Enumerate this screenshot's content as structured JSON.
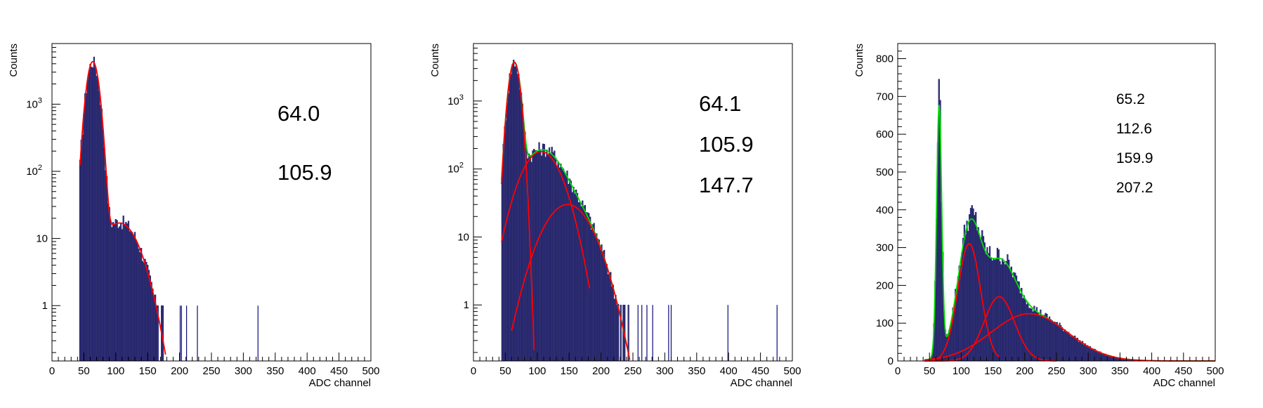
{
  "chart_data": [
    {
      "type": "histogram",
      "yscale": "log",
      "xlabel": "ADC channel",
      "ylabel": "Counts",
      "xlim": [
        0,
        500
      ],
      "ylim": [
        0.15,
        8000
      ],
      "xticks": [
        "0",
        "50",
        "100",
        "150",
        "200",
        "250",
        "300",
        "350",
        "400",
        "450",
        "500"
      ],
      "yticks": [
        {
          "value": 1,
          "label": "1"
        },
        {
          "value": 10,
          "label": "10"
        },
        {
          "value": 100,
          "label": "10",
          "exp": "2"
        },
        {
          "value": 1000,
          "label": "10",
          "exp": "3"
        }
      ],
      "peak_labels": [
        "64.0",
        "105.9"
      ],
      "fit_components": [
        {
          "color": "#ff0000",
          "peaks": [
            {
              "mu": 64.0,
              "amp": 4300,
              "sigma": 7.5
            },
            {
              "mu": 105.9,
              "amp": 17,
              "sigma": 24
            }
          ],
          "xrange": [
            44,
            178
          ]
        }
      ],
      "histogram_peaks": [
        {
          "mu": 64.0,
          "amp": 4300,
          "sigma": 7.5
        },
        {
          "mu": 105.9,
          "amp": 18,
          "sigma": 24
        }
      ],
      "hist_range": [
        43,
        176
      ],
      "isolated_bins": [
        {
          "x": 201,
          "y": 1
        },
        {
          "x": 203,
          "y": 1
        },
        {
          "x": 211,
          "y": 1
        },
        {
          "x": 228,
          "y": 1
        },
        {
          "x": 323,
          "y": 1
        }
      ]
    },
    {
      "type": "histogram",
      "yscale": "log",
      "xlabel": "ADC channel",
      "ylabel": "Counts",
      "xlim": [
        0,
        500
      ],
      "ylim": [
        0.15,
        7000
      ],
      "xticks": [
        "0",
        "50",
        "100",
        "150",
        "200",
        "250",
        "300",
        "350",
        "400",
        "450",
        "500"
      ],
      "yticks": [
        {
          "value": 1,
          "label": "1"
        },
        {
          "value": 10,
          "label": "10"
        },
        {
          "value": 100,
          "label": "10",
          "exp": "2"
        },
        {
          "value": 1000,
          "label": "10",
          "exp": "3"
        }
      ],
      "peak_labels": [
        "64.1",
        "105.9",
        "147.7"
      ],
      "fit_components": [
        {
          "color": "#00dd00",
          "peaks": [
            {
              "mu": 64.1,
              "amp": 3700,
              "sigma": 7
            },
            {
              "mu": 105.9,
              "amp": 180,
              "sigma": 25
            },
            {
              "mu": 147.7,
              "amp": 30,
              "sigma": 30
            }
          ],
          "xrange": [
            44,
            245
          ]
        },
        {
          "color": "#ff0000",
          "peaks": [
            {
              "mu": 64.1,
              "amp": 3700,
              "sigma": 7
            }
          ],
          "xrange": [
            44,
            95
          ]
        },
        {
          "color": "#ff0000",
          "peaks": [
            {
              "mu": 105.9,
              "amp": 180,
              "sigma": 25
            }
          ],
          "xrange": [
            44,
            182
          ]
        },
        {
          "color": "#ff0000",
          "peaks": [
            {
              "mu": 147.7,
              "amp": 30,
              "sigma": 30
            }
          ],
          "xrange": [
            60,
            245
          ]
        }
      ],
      "histogram_peaks": [
        {
          "mu": 64.1,
          "amp": 3700,
          "sigma": 7
        },
        {
          "mu": 105.9,
          "amp": 190,
          "sigma": 25
        },
        {
          "mu": 147.7,
          "amp": 32,
          "sigma": 30
        }
      ],
      "hist_range": [
        44,
        243
      ],
      "isolated_bins": [
        {
          "x": 258,
          "y": 1
        },
        {
          "x": 264,
          "y": 1
        },
        {
          "x": 272,
          "y": 1
        },
        {
          "x": 281,
          "y": 1
        },
        {
          "x": 306,
          "y": 1
        },
        {
          "x": 310,
          "y": 1
        },
        {
          "x": 399,
          "y": 1
        },
        {
          "x": 476,
          "y": 1
        }
      ]
    },
    {
      "type": "histogram",
      "yscale": "linear",
      "xlabel": "ADC channel",
      "ylabel": "Counts",
      "xlim": [
        0,
        500
      ],
      "ylim": [
        0,
        840
      ],
      "xticks": [
        "0",
        "50",
        "100",
        "150",
        "200",
        "250",
        "300",
        "350",
        "400",
        "450",
        "500"
      ],
      "yticks": [
        {
          "value": 0,
          "label": "0"
        },
        {
          "value": 100,
          "label": "100"
        },
        {
          "value": 200,
          "label": "200"
        },
        {
          "value": 300,
          "label": "300"
        },
        {
          "value": 400,
          "label": "400"
        },
        {
          "value": 500,
          "label": "500"
        },
        {
          "value": 600,
          "label": "600"
        },
        {
          "value": 700,
          "label": "700"
        },
        {
          "value": 800,
          "label": "800"
        }
      ],
      "peak_labels": [
        "65.2",
        "112.6",
        "159.9",
        "207.2"
      ],
      "fit_components": [
        {
          "color": "#00dd00",
          "peaks": [
            {
              "mu": 65.2,
              "amp": 660,
              "sigma": 4
            },
            {
              "mu": 112.6,
              "amp": 310,
              "sigma": 18
            },
            {
              "mu": 159.9,
              "amp": 170,
              "sigma": 24
            },
            {
              "mu": 207.2,
              "amp": 125,
              "sigma": 60
            }
          ],
          "xrange": [
            42,
            500
          ]
        },
        {
          "color": "#ff0000",
          "peaks": [
            {
              "mu": 112.6,
              "amp": 310,
              "sigma": 18
            }
          ],
          "xrange": [
            42,
            160
          ]
        },
        {
          "color": "#ff0000",
          "peaks": [
            {
              "mu": 159.9,
              "amp": 170,
              "sigma": 24
            }
          ],
          "xrange": [
            42,
            250
          ]
        },
        {
          "color": "#ff0000",
          "peaks": [
            {
              "mu": 207.2,
              "amp": 125,
              "sigma": 60
            }
          ],
          "xrange": [
            42,
            500
          ]
        }
      ],
      "histogram_peaks": [
        {
          "mu": 65.2,
          "amp": 680,
          "sigma": 4
        },
        {
          "mu": 112.6,
          "amp": 320,
          "sigma": 18
        },
        {
          "mu": 159.9,
          "amp": 175,
          "sigma": 24
        },
        {
          "mu": 207.2,
          "amp": 128,
          "sigma": 60
        }
      ],
      "hist_range": [
        42,
        500
      ],
      "isolated_bins": []
    }
  ],
  "colors": {
    "fill": "#35356b",
    "outline": "#0b0b7a",
    "fit_red": "#ff0000",
    "fit_green": "#00dd00"
  }
}
